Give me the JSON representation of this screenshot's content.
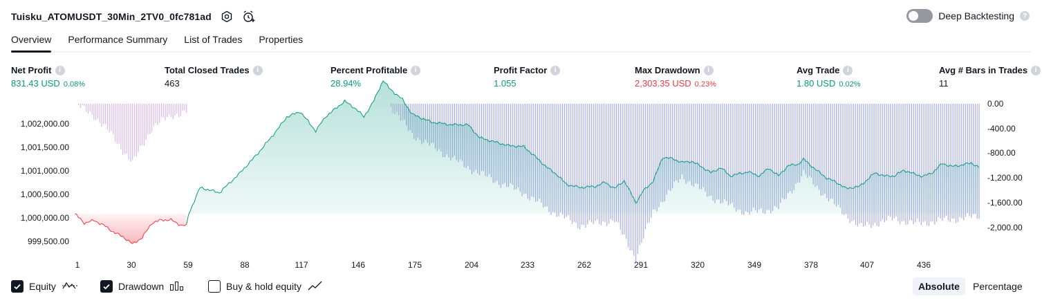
{
  "header": {
    "strategy_name": "Tuisku_ATOMUSDT_30Min_2TV0_0fc781ad",
    "deep_backtesting_label": "Deep Backtesting",
    "deep_backtesting_enabled": false
  },
  "tabs": [
    {
      "label": "Overview",
      "active": true
    },
    {
      "label": "Performance Summary",
      "active": false
    },
    {
      "label": "List of Trades",
      "active": false
    },
    {
      "label": "Properties",
      "active": false
    }
  ],
  "metrics": [
    {
      "label": "Net Profit",
      "value": "831.43 USD",
      "pct": "0.08%",
      "color": "green"
    },
    {
      "label": "Total Closed Trades",
      "value": "463",
      "pct": "",
      "color": "dark"
    },
    {
      "label": "Percent Profitable",
      "value": "28.94%",
      "pct": "",
      "color": "green"
    },
    {
      "label": "Profit Factor",
      "value": "1.055",
      "pct": "",
      "color": "green"
    },
    {
      "label": "Max Drawdown",
      "value": "2,303.35 USD",
      "pct": "0.23%",
      "color": "red"
    },
    {
      "label": "Avg Trade",
      "value": "1.80 USD",
      "pct": "0.02%",
      "color": "green"
    },
    {
      "label": "Avg # Bars in Trades",
      "value": "11",
      "pct": "",
      "color": "dark"
    }
  ],
  "chart_data": {
    "type": "area",
    "series": [
      {
        "name": "Equity",
        "x": [
          0,
          5,
          10,
          15,
          20,
          25,
          30,
          35,
          40,
          45,
          50,
          55,
          58,
          59,
          65,
          75,
          85,
          95,
          105,
          110,
          117,
          125,
          130,
          140,
          146,
          150,
          155,
          160,
          163,
          170,
          175,
          185,
          195,
          204,
          210,
          215,
          225,
          233,
          240,
          245,
          250,
          255,
          262,
          270,
          275,
          280,
          285,
          291,
          295,
          300,
          305,
          310,
          315,
          320,
          325,
          330,
          335,
          340,
          349,
          355,
          360,
          365,
          370,
          375,
          378,
          385,
          390,
          395,
          400,
          407,
          415,
          420,
          425,
          430,
          436,
          440,
          445,
          450,
          455,
          460,
          465,
          470
        ],
        "values": [
          1000000,
          999820,
          999870,
          999780,
          999650,
          999560,
          999420,
          999540,
          999820,
          999880,
          999880,
          999780,
          999770,
          999980,
          1000500,
          1000400,
          1000750,
          1001150,
          1001600,
          1001850,
          1001950,
          1001580,
          1001850,
          1002150,
          1002000,
          1001850,
          1002150,
          1002550,
          1002400,
          1002180,
          1001900,
          1001750,
          1001700,
          1001700,
          1001450,
          1001400,
          1001300,
          1001280,
          1001050,
          1000880,
          1000750,
          1000560,
          1000500,
          1000520,
          1000600,
          1000480,
          1000630,
          1000210,
          1000440,
          1000620,
          1001080,
          1001050,
          1000980,
          1001000,
          1000900,
          1000780,
          1000880,
          1000720,
          1000800,
          1000720,
          1000870,
          1000720,
          1000920,
          1000940,
          1001040,
          1000820,
          1000680,
          1000600,
          1000480,
          1000520,
          1000780,
          1000720,
          1000720,
          1000830,
          1000750,
          1000710,
          1000790,
          1000960,
          1000900,
          1000930,
          1000970,
          1000860
        ]
      },
      {
        "name": "Drawdown",
        "x": [
          0,
          10,
          20,
          30,
          40,
          50,
          58,
          59,
          70,
          80,
          90,
          105,
          117,
          130,
          146,
          163,
          175,
          190,
          204,
          220,
          233,
          245,
          262,
          280,
          291,
          300,
          315,
          330,
          349,
          365,
          378,
          395,
          407,
          425,
          436,
          450,
          470
        ],
        "values": [
          0,
          -170,
          -480,
          -870,
          -350,
          -170,
          -120,
          0,
          0,
          0,
          0,
          0,
          0,
          0,
          0,
          0,
          -450,
          -700,
          -930,
          -1150,
          -1300,
          -1530,
          -1780,
          -1700,
          -2250,
          -1580,
          -1060,
          -1360,
          -1600,
          -1520,
          -1020,
          -1500,
          -1800,
          -1680,
          -1750,
          -1700,
          -1640
        ]
      }
    ],
    "title": "",
    "xlabel": "",
    "ylabel": "",
    "xlim": [
      1,
      470
    ],
    "ylim": [
      999350,
      1002100
    ],
    "ylim_right": [
      -2100,
      0
    ],
    "x_ticks": [
      "1",
      "30",
      "59",
      "88",
      "117",
      "146",
      "175",
      "204",
      "233",
      "262",
      "291",
      "320",
      "349",
      "378",
      "407",
      "436"
    ],
    "x_tick_values": [
      1,
      30,
      59,
      88,
      117,
      146,
      175,
      204,
      233,
      262,
      291,
      320,
      349,
      378,
      407,
      436
    ],
    "y_ticks": [
      "1,002,000.00",
      "1,001,500.00",
      "1,001,000.00",
      "1,000,500.00",
      "1,000,000.00",
      "999,500.00"
    ],
    "y_tick_values": [
      1002000,
      1001500,
      1001000,
      1000500,
      1000000,
      999500
    ],
    "y_right_ticks": [
      "0.00",
      "-400.00",
      "-800.00",
      "-1,200.00",
      "-1,600.00",
      "-2,000.00"
    ],
    "y_right_tick_values": [
      0,
      -400,
      -800,
      -1200,
      -1600,
      -2000
    ],
    "baseline": 1000000
  },
  "legend": {
    "equity_label": "Equity",
    "drawdown_label": "Drawdown",
    "buyhold_label": "Buy & hold equity",
    "equity_checked": true,
    "drawdown_checked": true,
    "buyhold_checked": false
  },
  "view_toggle": {
    "absolute_label": "Absolute",
    "percentage_label": "Percentage",
    "selected": "Absolute"
  },
  "colors": {
    "profit": "#089981",
    "loss": "#f23645",
    "drawdown_bar": "#d9b8ec",
    "drawdown_bar_active": "#a9aee3",
    "text": "#131722"
  }
}
